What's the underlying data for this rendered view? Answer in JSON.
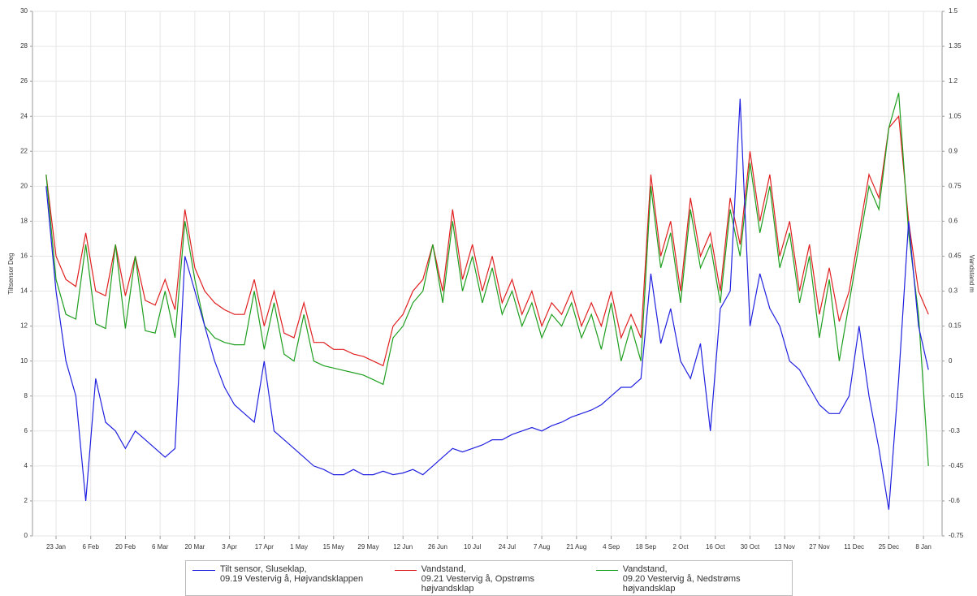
{
  "chart_data": {
    "type": "line",
    "y_label": "Tiltsensor Deg",
    "y2_label": "Vandstand m",
    "xlim": [
      -9.5,
      357.5
    ],
    "xticks": [
      {
        "value": 0,
        "label": "23 Jan"
      },
      {
        "value": 14,
        "label": "6 Feb"
      },
      {
        "value": 28,
        "label": "20 Feb"
      },
      {
        "value": 42,
        "label": "6 Mar"
      },
      {
        "value": 56,
        "label": "20 Mar"
      },
      {
        "value": 70,
        "label": "3 Apr"
      },
      {
        "value": 84,
        "label": "17 Apr"
      },
      {
        "value": 98,
        "label": "1 May"
      },
      {
        "value": 112,
        "label": "15 May"
      },
      {
        "value": 126,
        "label": "29 May"
      },
      {
        "value": 140,
        "label": "12 Jun"
      },
      {
        "value": 154,
        "label": "26 Jun"
      },
      {
        "value": 168,
        "label": "10 Jul"
      },
      {
        "value": 182,
        "label": "24 Jul"
      },
      {
        "value": 196,
        "label": "7 Aug"
      },
      {
        "value": 210,
        "label": "21 Aug"
      },
      {
        "value": 224,
        "label": "4 Sep"
      },
      {
        "value": 238,
        "label": "18 Sep"
      },
      {
        "value": 252,
        "label": "2 Oct"
      },
      {
        "value": 266,
        "label": "16 Oct"
      },
      {
        "value": 280,
        "label": "30 Oct"
      },
      {
        "value": 294,
        "label": "13 Nov"
      },
      {
        "value": 308,
        "label": "27 Nov"
      },
      {
        "value": 322,
        "label": "11 Dec"
      },
      {
        "value": 336,
        "label": "25 Dec"
      },
      {
        "value": 350,
        "label": "8 Jan"
      }
    ],
    "ylim": [
      0,
      30
    ],
    "yticks": [
      0,
      2,
      4,
      6,
      8,
      10,
      12,
      14,
      16,
      18,
      20,
      22,
      24,
      26,
      28,
      30
    ],
    "y2lim": [
      -0.75,
      1.5
    ],
    "y2ticks": [
      -0.75,
      -0.6,
      -0.45,
      -0.3,
      -0.15,
      0,
      0.15,
      0.3,
      0.45,
      0.6,
      0.75,
      0.9,
      1.05,
      1.2,
      1.35,
      1.5
    ],
    "grid": true,
    "x": [
      -4,
      0,
      4,
      8,
      12,
      16,
      20,
      24,
      28,
      32,
      36,
      40,
      44,
      48,
      52,
      56,
      60,
      64,
      68,
      72,
      76,
      80,
      84,
      88,
      92,
      96,
      100,
      104,
      108,
      112,
      116,
      120,
      124,
      128,
      132,
      136,
      140,
      144,
      148,
      152,
      156,
      160,
      164,
      168,
      172,
      176,
      180,
      184,
      188,
      192,
      196,
      200,
      204,
      208,
      212,
      216,
      220,
      224,
      228,
      232,
      236,
      240,
      244,
      248,
      252,
      256,
      260,
      264,
      268,
      272,
      276,
      280,
      284,
      288,
      292,
      296,
      300,
      304,
      308,
      312,
      316,
      320,
      324,
      328,
      332,
      336,
      340,
      344,
      348,
      352
    ],
    "series": [
      {
        "name": "Vandstand,\n09.21 Vestervig å, Opstrøms højvandsklap",
        "color": "#e02020",
        "axis": "y2",
        "values": [
          0.8,
          0.45,
          0.35,
          0.32,
          0.55,
          0.3,
          0.28,
          0.5,
          0.28,
          0.45,
          0.26,
          0.24,
          0.35,
          0.22,
          0.65,
          0.4,
          0.3,
          0.25,
          0.22,
          0.2,
          0.2,
          0.35,
          0.15,
          0.3,
          0.12,
          0.1,
          0.25,
          0.08,
          0.08,
          0.05,
          0.05,
          0.03,
          0.02,
          0.0,
          -0.02,
          0.15,
          0.2,
          0.3,
          0.35,
          0.5,
          0.3,
          0.65,
          0.35,
          0.5,
          0.3,
          0.45,
          0.25,
          0.35,
          0.2,
          0.3,
          0.15,
          0.25,
          0.2,
          0.3,
          0.15,
          0.25,
          0.15,
          0.3,
          0.1,
          0.2,
          0.1,
          0.8,
          0.45,
          0.6,
          0.3,
          0.7,
          0.45,
          0.55,
          0.3,
          0.7,
          0.5,
          0.9,
          0.6,
          0.8,
          0.45,
          0.6,
          0.3,
          0.5,
          0.2,
          0.4,
          0.17,
          0.3,
          0.55,
          0.8,
          0.7,
          1.0,
          1.05,
          0.6,
          0.3,
          0.2
        ]
      },
      {
        "name": "Vandstand,\n09.20 Vestervig å, Nedstrøms højvandsklap",
        "color": "#1e9e1e",
        "axis": "y2",
        "values": [
          0.8,
          0.35,
          0.2,
          0.18,
          0.5,
          0.16,
          0.14,
          0.5,
          0.14,
          0.45,
          0.13,
          0.12,
          0.3,
          0.1,
          0.6,
          0.35,
          0.15,
          0.1,
          0.08,
          0.07,
          0.07,
          0.3,
          0.05,
          0.25,
          0.03,
          0.0,
          0.2,
          0.0,
          -0.02,
          -0.03,
          -0.04,
          -0.05,
          -0.06,
          -0.08,
          -0.1,
          0.1,
          0.15,
          0.25,
          0.3,
          0.5,
          0.25,
          0.6,
          0.3,
          0.45,
          0.25,
          0.4,
          0.2,
          0.3,
          0.15,
          0.25,
          0.1,
          0.2,
          0.15,
          0.25,
          0.1,
          0.2,
          0.05,
          0.25,
          0.0,
          0.15,
          0.0,
          0.75,
          0.4,
          0.55,
          0.25,
          0.65,
          0.4,
          0.5,
          0.25,
          0.65,
          0.45,
          0.85,
          0.55,
          0.75,
          0.4,
          0.55,
          0.25,
          0.45,
          0.1,
          0.35,
          0.0,
          0.25,
          0.5,
          0.75,
          0.65,
          1.0,
          1.15,
          0.55,
          0.2,
          -0.45
        ]
      },
      {
        "name": "Tilt sensor, Sluseklap,\n09.19 Vestervig å, Højvandsklappen",
        "color": "#2020e0",
        "values": [
          20,
          14,
          10,
          8,
          2,
          9,
          6.5,
          6,
          5,
          6,
          5.5,
          5,
          4.5,
          5,
          16,
          14,
          12,
          10,
          8.5,
          7.5,
          7,
          6.5,
          10,
          6,
          5.5,
          5,
          4.5,
          4,
          3.8,
          3.5,
          3.5,
          3.8,
          3.5,
          3.5,
          3.7,
          3.5,
          3.6,
          3.8,
          3.5,
          4,
          4.5,
          5,
          4.8,
          5,
          5.2,
          5.5,
          5.5,
          5.8,
          6,
          6.2,
          6,
          6.3,
          6.5,
          6.8,
          7,
          7.2,
          7.5,
          8,
          8.5,
          8.5,
          9,
          15,
          11,
          13,
          10,
          9,
          11,
          6,
          13,
          14,
          25,
          12,
          15,
          13,
          12,
          10,
          9.5,
          8.5,
          7.5,
          7,
          7,
          8,
          12,
          8,
          5,
          1.5,
          9,
          18,
          12,
          9.5
        ]
      }
    ]
  }
}
